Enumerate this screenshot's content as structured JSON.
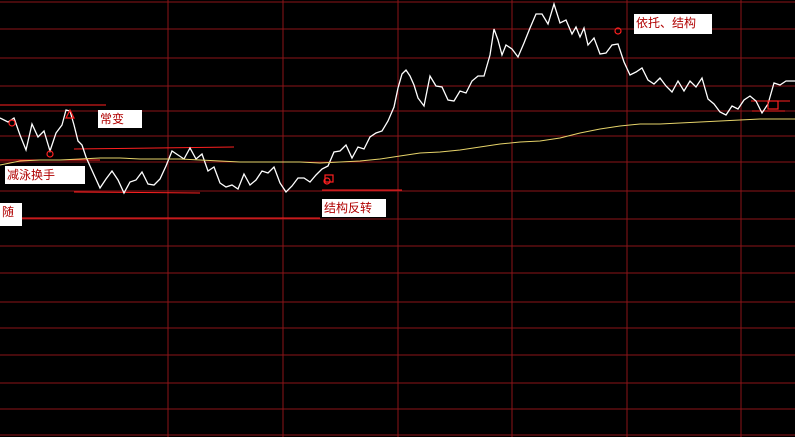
{
  "chart_data": {
    "type": "line",
    "title": "",
    "xlabel": "",
    "ylabel": "",
    "grid": true,
    "ylim": [
      0,
      437
    ],
    "series": [
      {
        "name": "",
        "color": "#ffffff",
        "x": [
          0,
          8,
          14,
          20,
          26,
          32,
          38,
          44,
          50,
          56,
          62,
          66,
          70,
          74,
          78,
          82,
          86,
          90,
          95,
          100,
          106,
          112,
          118,
          124,
          130,
          136,
          142,
          148,
          154,
          160,
          166,
          172,
          178,
          184,
          190,
          196,
          202,
          208,
          214,
          220,
          226,
          232,
          238,
          244,
          250,
          256,
          262,
          268,
          274,
          280,
          286,
          292,
          298,
          304,
          310,
          316,
          322,
          328,
          334,
          340,
          346,
          352,
          358,
          364,
          370,
          376,
          382,
          388,
          394,
          398,
          402,
          406,
          410,
          414,
          418,
          424,
          430,
          436,
          442,
          448,
          454,
          460,
          466,
          472,
          478,
          484,
          490,
          494,
          498,
          502,
          506,
          512,
          518,
          524,
          530,
          536,
          542,
          548,
          554,
          560,
          566,
          572,
          576,
          580,
          584,
          588,
          594,
          600,
          606,
          612,
          618,
          624,
          630,
          636,
          642,
          648,
          654,
          660,
          666,
          672,
          678,
          684,
          690,
          696,
          702,
          708,
          714,
          720,
          726,
          732,
          738,
          744,
          750,
          756,
          762,
          768,
          774,
          780,
          786,
          795
        ],
        "values": [
          319,
          315,
          319,
          302,
          287,
          313,
          300,
          306,
          286,
          304,
          312,
          327,
          326,
          312,
          296,
          292,
          280,
          271,
          260,
          249,
          258,
          266,
          257,
          244,
          255,
          257,
          265,
          253,
          252,
          258,
          271,
          286,
          282,
          278,
          289,
          278,
          283,
          266,
          270,
          254,
          250,
          252,
          248,
          263,
          252,
          257,
          266,
          264,
          270,
          254,
          245,
          251,
          259,
          259,
          255,
          262,
          268,
          271,
          285,
          286,
          292,
          279,
          290,
          288,
          300,
          304,
          306,
          316,
          330,
          349,
          363,
          367,
          361,
          352,
          339,
          331,
          361,
          351,
          350,
          337,
          336,
          346,
          344,
          356,
          361,
          361,
          382,
          408,
          397,
          382,
          392,
          388,
          380,
          394,
          409,
          423,
          423,
          413,
          433,
          414,
          417,
          403,
          410,
          400,
          409,
          392,
          399,
          383,
          384,
          392,
          393,
          375,
          362,
          365,
          369,
          357,
          353,
          359,
          351,
          345,
          356,
          346,
          356,
          350,
          359,
          338,
          333,
          325,
          322,
          331,
          328,
          337,
          341,
          336,
          324,
          333,
          354,
          352,
          356,
          356
        ]
      },
      {
        "name": "",
        "color": "#e6d36a",
        "x": [
          0,
          20,
          40,
          60,
          80,
          100,
          120,
          140,
          160,
          180,
          200,
          220,
          240,
          260,
          280,
          300,
          320,
          340,
          360,
          380,
          400,
          420,
          440,
          460,
          480,
          500,
          520,
          540,
          560,
          580,
          600,
          620,
          640,
          660,
          680,
          700,
          720,
          740,
          760,
          780,
          795
        ],
        "values": [
          272,
          276,
          277,
          277,
          278,
          279,
          279,
          278,
          278,
          278,
          277,
          276,
          275,
          275,
          275,
          275,
          274,
          275,
          276,
          278,
          281,
          284,
          285,
          287,
          290,
          293,
          295,
          296,
          299,
          304,
          308,
          311,
          313,
          313,
          314,
          315,
          316,
          317,
          318,
          318,
          318
        ]
      }
    ]
  },
  "labels": {
    "l1": "常变",
    "l2": "减泳换手",
    "l3": "随",
    "l4": "结构反转",
    "l5": "依托、结构"
  },
  "colors": {
    "background": "#000000",
    "grid": "#8c1418",
    "price": "#ffffff",
    "average": "#e6d36a",
    "markers": "#ff2020"
  }
}
